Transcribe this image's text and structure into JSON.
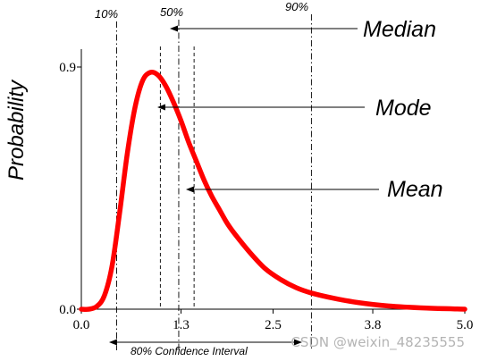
{
  "chart_data": {
    "type": "line",
    "title": "",
    "xlabel": "",
    "ylabel": "Probability",
    "xlim": [
      0.0,
      5.0
    ],
    "ylim": [
      0.0,
      0.9
    ],
    "x_ticks": [
      "0.0",
      "1.3",
      "2.5",
      "3.8",
      "5.0"
    ],
    "y_ticks": [
      "0.0",
      "0.9"
    ],
    "line_color": "#ff0000",
    "grid": false,
    "series": [
      {
        "x": [
          0.0,
          0.1,
          0.2,
          0.3,
          0.4,
          0.5,
          0.6,
          0.7,
          0.8,
          0.9,
          1.0,
          1.1,
          1.2,
          1.3,
          1.4,
          1.5,
          1.6,
          1.7,
          1.8,
          1.9,
          2.0,
          2.2,
          2.4,
          2.6,
          2.8,
          3.0,
          3.3,
          3.6,
          4.0,
          4.5,
          5.0
        ],
        "y": [
          0.0,
          0.0,
          0.01,
          0.05,
          0.16,
          0.36,
          0.58,
          0.75,
          0.85,
          0.88,
          0.87,
          0.83,
          0.77,
          0.7,
          0.62,
          0.55,
          0.48,
          0.42,
          0.37,
          0.32,
          0.28,
          0.21,
          0.15,
          0.11,
          0.08,
          0.06,
          0.04,
          0.025,
          0.012,
          0.004,
          0.0
        ]
      }
    ],
    "percentile_lines": [
      {
        "label": "10%",
        "x": 0.46
      },
      {
        "label": "50%",
        "x": 1.27
      },
      {
        "label": "90%",
        "x": 3.0
      }
    ],
    "stat_lines": [
      {
        "name": "Mode",
        "x": 1.03
      },
      {
        "name": "Median",
        "x": 1.27
      },
      {
        "name": "Mean",
        "x": 1.47
      }
    ],
    "annotations": {
      "median": "Median",
      "mode": "Mode",
      "mean": "Mean",
      "confidence_interval": "80% Confidence Interval"
    }
  },
  "watermark": "CSDN @weixin_48235555"
}
